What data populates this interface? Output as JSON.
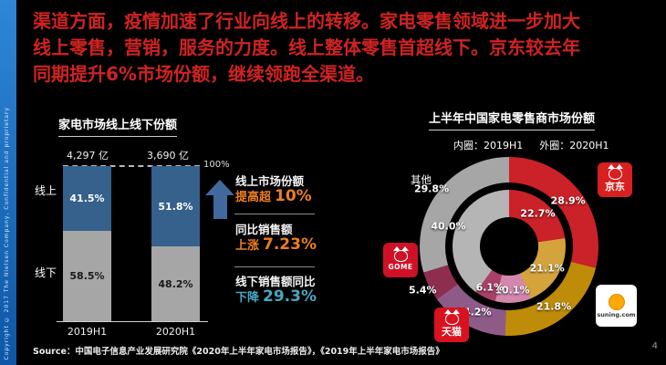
{
  "strip": {
    "copyright": "Copyright © 2017 The Nielsen Company, Confidential and proprietary",
    "color_top": "#2f86d6",
    "color_bottom": "#0d57a6"
  },
  "title": {
    "color": "#cf2323",
    "lines": [
      "渠道方面，疫情加速了行业向线上的转移。家电零售领域进一步加大",
      "线上零售，营销，服务的力度。线上整体零售首超线下。京东较去年",
      "同期提升6%市场份额，继续领跑全渠道。"
    ]
  },
  "stats": [
    {
      "label": "线上市场份额",
      "prefix": "提高超",
      "value": "10%"
    },
    {
      "label": "同比销售额",
      "prefix": "上涨",
      "value": "7.23%"
    },
    {
      "label": "线下销售额同比",
      "prefix": "下降",
      "value": "29.3%"
    }
  ],
  "accent": {
    "orange": "#ee7e1e",
    "teal": "#46a6c2",
    "arrow_blue": "#41699e"
  },
  "chart_data": [
    {
      "type": "bar",
      "title": "家电市场线上线下份额",
      "stacked": true,
      "normalized_to_100": true,
      "categories": [
        "2019H1",
        "2020H1"
      ],
      "series": [
        {
          "name": "线上",
          "values": [
            41.5,
            51.8
          ],
          "color": "#35618c",
          "label_color": "#ffffff"
        },
        {
          "name": "线下",
          "values": [
            58.5,
            48.2
          ],
          "color": "#a6a6a6",
          "label_color": "#1a1a1a"
        }
      ],
      "totals": [
        {
          "category": "2019H1",
          "label": "4,297 亿",
          "value": 4297
        },
        {
          "category": "2020H1",
          "label": "3,690 亿",
          "value": 3690
        }
      ],
      "reference_line_label": "100%",
      "ylim": [
        0,
        100
      ],
      "unit": "%"
    },
    {
      "type": "pie",
      "subtype": "double-ring-donut",
      "title": "上半年中国家电零售商市场份额",
      "legend": [
        "内圈：2019H1",
        "外圈：2020H1"
      ],
      "categories": [
        "京东",
        "苏宁易购",
        "天猫",
        "国美",
        "其他"
      ],
      "series": [
        {
          "name": "2020H1",
          "ring": "outer",
          "values": [
            28.9,
            21.8,
            14.2,
            5.4,
            29.8
          ],
          "colors": [
            "#cb2128",
            "#bf8c0a",
            "#8e5b88",
            "#8d2e4e",
            "#a6a6a6"
          ]
        },
        {
          "name": "2019H1",
          "ring": "inner",
          "values": [
            22.7,
            21.1,
            10.1,
            6.1,
            40.0
          ],
          "colors": [
            "#cb2128",
            "#d4a33c",
            "#d387ae",
            "#a84168",
            "#b5b5b5"
          ]
        }
      ],
      "unit": "%"
    }
  ],
  "logos": {
    "jd": {
      "text": "京东",
      "bg": "#d7201f"
    },
    "gome": {
      "text": "GOME",
      "bg": "#cf1126"
    },
    "tmall": {
      "text": "天猫",
      "bg": "#d8121f"
    },
    "suning": {
      "text": "suning.com",
      "bg": "#ffffff"
    }
  },
  "footer": {
    "source": "Source：中国电子信息产业发展研究院《2020年上半年家电市场报告》，《2019年上半年家电市场报告》",
    "page_number": "4"
  }
}
